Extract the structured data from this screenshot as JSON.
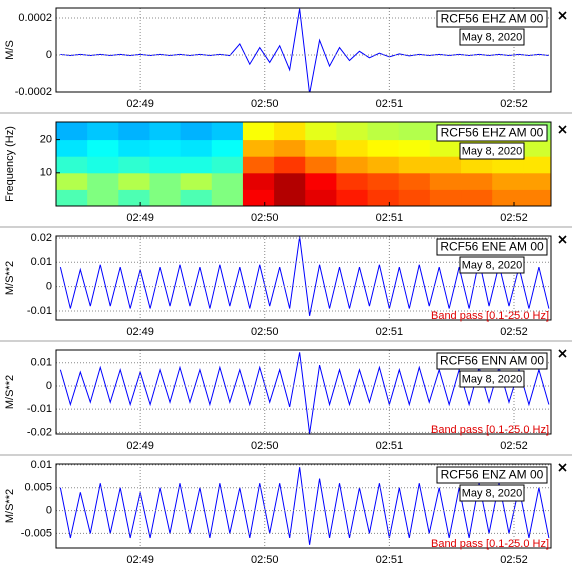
{
  "chart_data": [
    {
      "type": "line",
      "ylabel": "M/S",
      "station": "RCF56 EHZ AM 00",
      "date": "May 8, 2020",
      "color": "#0000ff",
      "grid": true,
      "xlim": [
        168.325,
        172.297
      ],
      "ylim": [
        -0.0002,
        0.000254
      ],
      "yticks": [
        0.0002,
        0,
        -0.0002
      ],
      "xticks": [
        {
          "value": 169,
          "label": "02:49"
        },
        {
          "value": 170,
          "label": "02:50"
        },
        {
          "value": 171,
          "label": "02:51"
        },
        {
          "value": 172,
          "label": "02:52"
        }
      ],
      "x": [
        168.36,
        168.44,
        168.52,
        168.6,
        168.68,
        168.76,
        168.84,
        168.92,
        169,
        169.08,
        169.16,
        169.24,
        169.32,
        169.4,
        169.48,
        169.56,
        169.64,
        169.72,
        169.8,
        169.88,
        169.96,
        170.04,
        170.12,
        170.2,
        170.28,
        170.36,
        170.44,
        170.52,
        170.6,
        170.68,
        170.76,
        170.84,
        170.92,
        171,
        171.08,
        171.16,
        171.24,
        171.32,
        171.4,
        171.48,
        171.56,
        171.64,
        171.72,
        171.8,
        171.88,
        171.96,
        172.04,
        172.12,
        172.2,
        172.28
      ],
      "values": [
        3e-06,
        -3e-06,
        3e-06,
        -3e-06,
        3e-06,
        -3e-06,
        3e-06,
        -3e-06,
        3e-06,
        -3e-06,
        3e-06,
        -3e-06,
        3e-06,
        -3e-06,
        3e-06,
        -3e-06,
        3e-06,
        -3e-06,
        6e-05,
        -5e-05,
        4e-05,
        -4e-05,
        5e-05,
        -8e-05,
        0.00025,
        -0.00021,
        8e-05,
        -6e-05,
        4e-05,
        -3e-05,
        2e-05,
        -1.5e-05,
        1e-05,
        -1e-05,
        6e-06,
        -5e-06,
        3e-06,
        -3e-06,
        3e-06,
        -3e-06,
        3e-06,
        -3e-06,
        3e-06,
        -3e-06,
        3e-06,
        -3e-06,
        3e-06,
        -3e-06,
        3e-06,
        -3e-06
      ]
    },
    {
      "type": "heatmap",
      "ylabel": "Frequency (Hz)",
      "station": "RCF56 EHZ AM 00",
      "date": "May 8, 2020",
      "grid": false,
      "xlim": [
        168.325,
        172.297
      ],
      "ylim": [
        0,
        25.3
      ],
      "yticks": [
        10,
        20
      ],
      "xticks": [
        {
          "value": 169,
          "label": "02:49"
        },
        {
          "value": 170,
          "label": "02:50"
        },
        {
          "value": 171,
          "label": "02:51"
        },
        {
          "value": 172,
          "label": "02:52"
        }
      ],
      "x": [
        168.45,
        168.7,
        168.95,
        169.2,
        169.45,
        169.7,
        169.95,
        170.2,
        170.45,
        170.7,
        170.95,
        171.2,
        171.45,
        171.7,
        171.95,
        172.2
      ],
      "y": [
        2.5,
        7.5,
        12.5,
        17.5,
        22.5
      ],
      "values": [
        [
          0.45,
          0.5,
          0.45,
          0.5,
          0.45,
          0.5,
          0.88,
          0.95,
          0.9,
          0.85,
          0.82,
          0.8,
          0.78,
          0.78,
          0.75,
          0.75
        ],
        [
          0.55,
          0.5,
          0.55,
          0.5,
          0.55,
          0.5,
          0.9,
          0.95,
          0.88,
          0.82,
          0.8,
          0.78,
          0.75,
          0.75,
          0.72,
          0.72
        ],
        [
          0.42,
          0.4,
          0.42,
          0.4,
          0.4,
          0.42,
          0.78,
          0.82,
          0.76,
          0.72,
          0.7,
          0.68,
          0.68,
          0.66,
          0.65,
          0.65
        ],
        [
          0.35,
          0.38,
          0.35,
          0.36,
          0.35,
          0.38,
          0.7,
          0.72,
          0.68,
          0.65,
          0.63,
          0.62,
          0.6,
          0.6,
          0.6,
          0.58
        ],
        [
          0.3,
          0.32,
          0.3,
          0.32,
          0.3,
          0.32,
          0.62,
          0.65,
          0.6,
          0.58,
          0.56,
          0.55,
          0.55,
          0.53,
          0.53,
          0.52
        ]
      ]
    },
    {
      "type": "line",
      "ylabel": "M/S**2",
      "station": "RCF56 ENE AM 00",
      "date": "May 8, 2020",
      "filter": "Band pass [0.1-25.0 Hz]",
      "color": "#0000ff",
      "grid": true,
      "xlim": [
        168.325,
        172.297
      ],
      "ylim": [
        -0.0137,
        0.0208
      ],
      "yticks": [
        0.02,
        0.01,
        0,
        -0.01
      ],
      "xticks": [
        {
          "value": 169,
          "label": "02:49"
        },
        {
          "value": 170,
          "label": "02:50"
        },
        {
          "value": 171,
          "label": "02:51"
        },
        {
          "value": 172,
          "label": "02:52"
        }
      ],
      "x": [
        168.36,
        168.44,
        168.52,
        168.6,
        168.68,
        168.76,
        168.84,
        168.92,
        169,
        169.08,
        169.16,
        169.24,
        169.32,
        169.4,
        169.48,
        169.56,
        169.64,
        169.72,
        169.8,
        169.88,
        169.96,
        170.04,
        170.12,
        170.2,
        170.28,
        170.36,
        170.44,
        170.52,
        170.6,
        170.68,
        170.76,
        170.84,
        170.92,
        171,
        171.08,
        171.16,
        171.24,
        171.32,
        171.4,
        171.48,
        171.56,
        171.64,
        171.72,
        171.8,
        171.88,
        171.96,
        172.04,
        172.12,
        172.2,
        172.28
      ],
      "values": [
        0.008,
        -0.009,
        0.007,
        -0.008,
        0.009,
        -0.008,
        0.008,
        -0.009,
        0.007,
        -0.009,
        0.008,
        -0.008,
        0.009,
        -0.008,
        0.008,
        -0.009,
        0.009,
        -0.008,
        0.008,
        -0.009,
        0.009,
        -0.008,
        0.008,
        -0.009,
        0.0205,
        -0.012,
        0.009,
        -0.009,
        0.008,
        -0.009,
        0.008,
        -0.008,
        0.009,
        -0.009,
        0.008,
        -0.009,
        0.009,
        -0.008,
        0.008,
        -0.009,
        0.008,
        -0.009,
        0.011,
        -0.008,
        0.009,
        -0.008,
        0.008,
        -0.009,
        0.008,
        -0.009
      ]
    },
    {
      "type": "line",
      "ylabel": "M/S**2",
      "station": "RCF56 ENN AM 00",
      "date": "May 8, 2020",
      "filter": "Band pass [0.1-25.0 Hz]",
      "color": "#0000ff",
      "grid": true,
      "xlim": [
        168.325,
        172.297
      ],
      "ylim": [
        -0.0207,
        0.0155
      ],
      "yticks": [
        0.01,
        0,
        -0.01,
        -0.02
      ],
      "xticks": [
        {
          "value": 169,
          "label": "02:49"
        },
        {
          "value": 170,
          "label": "02:50"
        },
        {
          "value": 171,
          "label": "02:51"
        },
        {
          "value": 172,
          "label": "02:52"
        }
      ],
      "x": [
        168.36,
        168.44,
        168.52,
        168.6,
        168.68,
        168.76,
        168.84,
        168.92,
        169,
        169.08,
        169.16,
        169.24,
        169.32,
        169.4,
        169.48,
        169.56,
        169.64,
        169.72,
        169.8,
        169.88,
        169.96,
        170.04,
        170.12,
        170.2,
        170.28,
        170.36,
        170.44,
        170.52,
        170.6,
        170.68,
        170.76,
        170.84,
        170.92,
        171,
        171.08,
        171.16,
        171.24,
        171.32,
        171.4,
        171.48,
        171.56,
        171.64,
        171.72,
        171.8,
        171.88,
        171.96,
        172.04,
        172.12,
        172.2,
        172.28
      ],
      "values": [
        0.007,
        -0.008,
        0.006,
        -0.007,
        0.008,
        -0.007,
        0.007,
        -0.008,
        0.006,
        -0.008,
        0.007,
        -0.007,
        0.008,
        -0.007,
        0.007,
        -0.008,
        0.008,
        -0.007,
        0.007,
        -0.008,
        0.008,
        -0.007,
        0.007,
        -0.009,
        0.0145,
        -0.0205,
        0.009,
        -0.008,
        0.007,
        -0.008,
        0.007,
        -0.007,
        0.008,
        -0.008,
        0.007,
        -0.008,
        0.008,
        -0.007,
        0.007,
        -0.008,
        0.007,
        -0.008,
        0.008,
        -0.007,
        0.008,
        -0.007,
        0.007,
        -0.008,
        0.007,
        -0.008
      ]
    },
    {
      "type": "line",
      "ylabel": "M/S**2",
      "station": "RCF56 ENZ AM 00",
      "date": "May 8, 2020",
      "filter": "Band pass [0.1-25.0 Hz]",
      "color": "#0000ff",
      "grid": true,
      "xlim": [
        168.325,
        172.297
      ],
      "ylim": [
        -0.0082,
        0.0102
      ],
      "yticks": [
        0.01,
        0.005,
        0,
        -0.005
      ],
      "xticks": [
        {
          "value": 169,
          "label": "02:49"
        },
        {
          "value": 170,
          "label": "02:50"
        },
        {
          "value": 171,
          "label": "02:51"
        },
        {
          "value": 172,
          "label": "02:52"
        }
      ],
      "x": [
        168.36,
        168.44,
        168.52,
        168.6,
        168.68,
        168.76,
        168.84,
        168.92,
        169,
        169.08,
        169.16,
        169.24,
        169.32,
        169.4,
        169.48,
        169.56,
        169.64,
        169.72,
        169.8,
        169.88,
        169.96,
        170.04,
        170.12,
        170.2,
        170.28,
        170.36,
        170.44,
        170.52,
        170.6,
        170.68,
        170.76,
        170.84,
        170.92,
        171,
        171.08,
        171.16,
        171.24,
        171.32,
        171.4,
        171.48,
        171.56,
        171.64,
        171.72,
        171.8,
        171.88,
        171.96,
        172.04,
        172.12,
        172.2,
        172.28
      ],
      "values": [
        0.005,
        -0.006,
        0.004,
        -0.005,
        0.006,
        -0.005,
        0.005,
        -0.006,
        0.004,
        -0.006,
        0.005,
        -0.005,
        0.006,
        -0.005,
        0.005,
        -0.006,
        0.006,
        -0.005,
        0.005,
        -0.006,
        0.006,
        -0.005,
        0.006,
        -0.006,
        0.0095,
        -0.0075,
        0.007,
        -0.006,
        0.006,
        -0.006,
        0.005,
        -0.005,
        0.006,
        -0.006,
        0.005,
        -0.006,
        0.006,
        -0.005,
        0.005,
        -0.006,
        0.005,
        -0.006,
        0.006,
        -0.005,
        0.006,
        -0.005,
        0.005,
        -0.006,
        0.005,
        -0.006
      ]
    }
  ]
}
